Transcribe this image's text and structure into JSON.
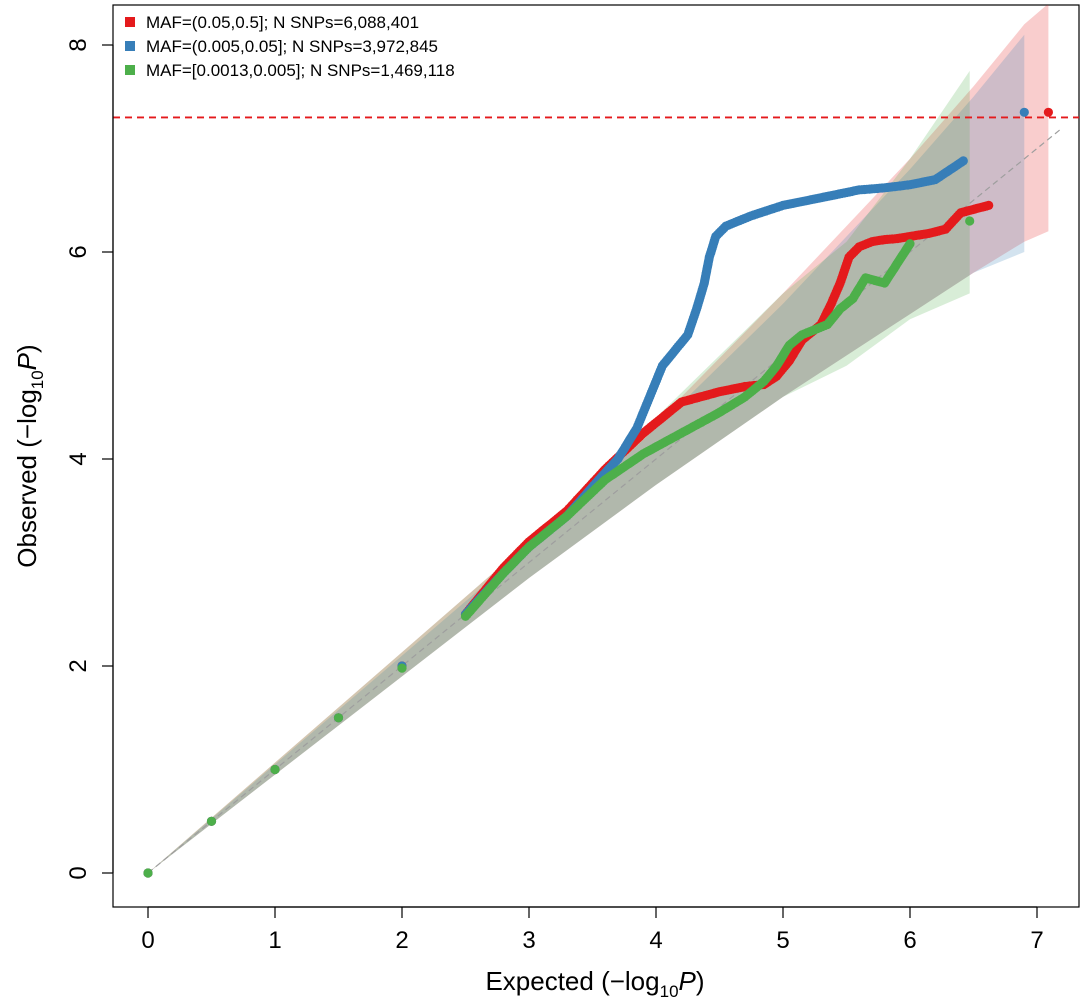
{
  "chart_data": {
    "type": "scatter",
    "title": "",
    "xlabel": "Expected (−log10P)",
    "ylabel": "Observed (−log10P)",
    "xlabel_parts": {
      "prefix": "Expected  (−log",
      "sub": "10",
      "var": "P",
      "suffix": ")"
    },
    "ylabel_parts": {
      "prefix": "Observed  (−log",
      "sub": "10",
      "var": "P",
      "suffix": ")"
    },
    "xlim": [
      0,
      7.2
    ],
    "ylim": [
      0,
      8.2
    ],
    "x_ticks": [
      0,
      1,
      2,
      3,
      4,
      5,
      6,
      7
    ],
    "y_ticks": [
      0,
      2,
      4,
      6,
      8
    ],
    "x_tick_labels": [
      "0",
      "1",
      "2",
      "3",
      "4",
      "5",
      "6",
      "7"
    ],
    "y_tick_labels": [
      "0",
      "2",
      "4",
      "6",
      "8"
    ],
    "significance_threshold": 7.3,
    "legend_position": "top-left",
    "series": [
      {
        "name": "MAF=(0.05,0.5]; N SNPs=6,088,401",
        "color": "#e41a1c",
        "band_upper": [
          [
            3,
            3.2
          ],
          [
            4,
            4.35
          ],
          [
            5,
            5.6
          ],
          [
            6,
            6.9
          ],
          [
            6.5,
            7.6
          ],
          [
            6.9,
            8.2
          ],
          [
            7.09,
            8.4
          ]
        ],
        "band_lower": [
          [
            3,
            2.85
          ],
          [
            4,
            3.75
          ],
          [
            5,
            4.6
          ],
          [
            6,
            5.4
          ],
          [
            6.5,
            5.8
          ],
          [
            6.9,
            6.1
          ],
          [
            7.09,
            6.2
          ]
        ],
        "points": [
          [
            0,
            0
          ],
          [
            0.5,
            0.5
          ],
          [
            1,
            1.0
          ],
          [
            1.5,
            1.5
          ],
          [
            2,
            2.0
          ],
          [
            2.5,
            2.5
          ],
          [
            2.8,
            2.95
          ],
          [
            3,
            3.2
          ],
          [
            3.3,
            3.5
          ],
          [
            3.6,
            3.9
          ],
          [
            3.9,
            4.25
          ],
          [
            4.2,
            4.55
          ],
          [
            4.5,
            4.65
          ],
          [
            4.7,
            4.7
          ],
          [
            4.85,
            4.72
          ],
          [
            4.95,
            4.8
          ],
          [
            5.05,
            4.95
          ],
          [
            5.15,
            5.15
          ],
          [
            5.3,
            5.3
          ],
          [
            5.38,
            5.5
          ],
          [
            5.45,
            5.7
          ],
          [
            5.52,
            5.95
          ],
          [
            5.6,
            6.05
          ],
          [
            5.7,
            6.1
          ],
          [
            5.8,
            6.12
          ],
          [
            5.9,
            6.13
          ],
          [
            6.0,
            6.15
          ],
          [
            6.05,
            6.16
          ],
          [
            6.15,
            6.18
          ],
          [
            6.28,
            6.22
          ],
          [
            6.4,
            6.38
          ],
          [
            6.62,
            6.45
          ],
          [
            7.09,
            7.35
          ]
        ]
      },
      {
        "name": "MAF=(0.005,0.05]; N SNPs=3,972,845",
        "color": "#377eb8",
        "band_upper": [
          [
            3,
            3.15
          ],
          [
            4,
            4.3
          ],
          [
            5,
            5.5
          ],
          [
            6,
            6.8
          ],
          [
            6.5,
            7.5
          ],
          [
            6.9,
            8.1
          ]
        ],
        "band_lower": [
          [
            3,
            2.85
          ],
          [
            4,
            3.75
          ],
          [
            5,
            4.6
          ],
          [
            6,
            5.4
          ],
          [
            6.5,
            5.8
          ],
          [
            6.9,
            6.0
          ]
        ],
        "points": [
          [
            0,
            0
          ],
          [
            0.5,
            0.5
          ],
          [
            1,
            1.0
          ],
          [
            1.5,
            1.5
          ],
          [
            2,
            2.0
          ],
          [
            2.5,
            2.5
          ],
          [
            2.8,
            2.9
          ],
          [
            3,
            3.15
          ],
          [
            3.3,
            3.45
          ],
          [
            3.55,
            3.8
          ],
          [
            3.7,
            4.0
          ],
          [
            3.85,
            4.3
          ],
          [
            3.95,
            4.6
          ],
          [
            4.05,
            4.9
          ],
          [
            4.15,
            5.05
          ],
          [
            4.25,
            5.2
          ],
          [
            4.32,
            5.45
          ],
          [
            4.38,
            5.7
          ],
          [
            4.42,
            5.95
          ],
          [
            4.47,
            6.15
          ],
          [
            4.55,
            6.25
          ],
          [
            4.75,
            6.35
          ],
          [
            5.0,
            6.45
          ],
          [
            5.2,
            6.5
          ],
          [
            5.4,
            6.55
          ],
          [
            5.6,
            6.6
          ],
          [
            5.8,
            6.62
          ],
          [
            6.0,
            6.65
          ],
          [
            6.2,
            6.7
          ],
          [
            6.42,
            6.88
          ],
          [
            6.9,
            7.35
          ]
        ]
      },
      {
        "name": "MAF=[0.0013,0.005]; N SNPs=1,469,118",
        "color": "#4daf4a",
        "band_upper": [
          [
            3,
            3.2
          ],
          [
            4,
            4.4
          ],
          [
            5,
            5.6
          ],
          [
            5.5,
            6.1
          ],
          [
            6,
            6.9
          ],
          [
            6.47,
            7.75
          ]
        ],
        "band_lower": [
          [
            3,
            2.85
          ],
          [
            4,
            3.75
          ],
          [
            5,
            4.6
          ],
          [
            5.5,
            4.9
          ],
          [
            6,
            5.35
          ],
          [
            6.47,
            5.6
          ]
        ],
        "points": [
          [
            0,
            0
          ],
          [
            0.5,
            0.5
          ],
          [
            1,
            1.0
          ],
          [
            1.5,
            1.5
          ],
          [
            2,
            1.98
          ],
          [
            2.5,
            2.48
          ],
          [
            2.8,
            2.9
          ],
          [
            3,
            3.15
          ],
          [
            3.3,
            3.45
          ],
          [
            3.6,
            3.8
          ],
          [
            3.9,
            4.05
          ],
          [
            4.2,
            4.25
          ],
          [
            4.5,
            4.45
          ],
          [
            4.7,
            4.6
          ],
          [
            4.85,
            4.75
          ],
          [
            4.95,
            4.9
          ],
          [
            5.05,
            5.1
          ],
          [
            5.15,
            5.2
          ],
          [
            5.25,
            5.25
          ],
          [
            5.35,
            5.3
          ],
          [
            5.45,
            5.45
          ],
          [
            5.55,
            5.55
          ],
          [
            5.65,
            5.75
          ],
          [
            5.8,
            5.7
          ],
          [
            6.0,
            6.08
          ],
          [
            6.47,
            6.3
          ]
        ]
      }
    ]
  }
}
